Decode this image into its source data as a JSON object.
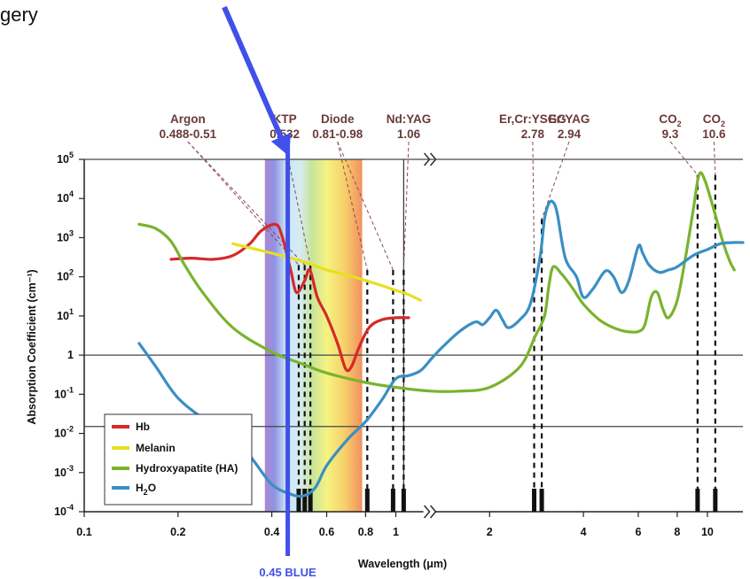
{
  "header": {
    "fragment_text": "gery"
  },
  "chart_data": {
    "type": "line",
    "x_scale": "log",
    "y_scale": "log",
    "xlabel": "Wavelength (μm)",
    "ylabel": "Absorption Coefficient (cm⁻¹)",
    "xlim": [
      0.1,
      13
    ],
    "ylim": [
      0.0001,
      100000
    ],
    "x_ticks": [
      {
        "value": 0.1,
        "label": "0.1"
      },
      {
        "value": 0.2,
        "label": "0.2"
      },
      {
        "value": 0.4,
        "label": "0.4"
      },
      {
        "value": 0.6,
        "label": "0.6"
      },
      {
        "value": 0.8,
        "label": "0.8"
      },
      {
        "value": 1,
        "label": "1"
      },
      {
        "value": 2,
        "label": "2"
      },
      {
        "value": 4,
        "label": "4"
      },
      {
        "value": 6,
        "label": "6"
      },
      {
        "value": 8,
        "label": "8"
      },
      {
        "value": 10,
        "label": "10"
      }
    ],
    "y_ticks": [
      {
        "value": 100000,
        "base": "10",
        "exp": "5"
      },
      {
        "value": 10000,
        "base": "10",
        "exp": "4"
      },
      {
        "value": 1000,
        "base": "10",
        "exp": "3"
      },
      {
        "value": 100,
        "base": "10",
        "exp": "2"
      },
      {
        "value": 10,
        "base": "10",
        "exp": "1"
      },
      {
        "value": 1,
        "base": "1",
        "exp": ""
      },
      {
        "value": 0.1,
        "base": "10",
        "exp": "-1"
      },
      {
        "value": 0.01,
        "base": "10",
        "exp": "-2"
      },
      {
        "value": 0.001,
        "base": "10",
        "exp": "-3"
      },
      {
        "value": 0.0001,
        "base": "10",
        "exp": "-4"
      }
    ],
    "reference_lines_y": [
      100000,
      1,
      0.015
    ],
    "axis_break_x": 1.25,
    "series": [
      {
        "name": "Hb",
        "color": "#d42a2a",
        "points": [
          [
            0.19,
            280
          ],
          [
            0.22,
            300
          ],
          [
            0.26,
            280
          ],
          [
            0.3,
            350
          ],
          [
            0.34,
            700
          ],
          [
            0.37,
            1500
          ],
          [
            0.41,
            2200
          ],
          [
            0.43,
            1200
          ],
          [
            0.46,
            150
          ],
          [
            0.48,
            40
          ],
          [
            0.51,
            80
          ],
          [
            0.53,
            150
          ],
          [
            0.56,
            30
          ],
          [
            0.6,
            10
          ],
          [
            0.65,
            2
          ],
          [
            0.69,
            0.45
          ],
          [
            0.72,
            0.5
          ],
          [
            0.76,
            1.5
          ],
          [
            0.82,
            5
          ],
          [
            0.9,
            8
          ],
          [
            1.0,
            9
          ],
          [
            1.1,
            9
          ]
        ]
      },
      {
        "name": "Melanin",
        "color": "#e6e020",
        "points": [
          [
            0.3,
            700
          ],
          [
            0.4,
            400
          ],
          [
            0.5,
            250
          ],
          [
            0.6,
            150
          ],
          [
            0.7,
            110
          ],
          [
            0.8,
            80
          ],
          [
            0.9,
            60
          ],
          [
            1.0,
            45
          ],
          [
            1.1,
            35
          ],
          [
            1.2,
            25
          ]
        ]
      },
      {
        "name": "Hydroxyapatite (HA)",
        "color": "#7ab32e",
        "points": [
          [
            0.15,
            2200
          ],
          [
            0.17,
            1700
          ],
          [
            0.19,
            800
          ],
          [
            0.21,
            200
          ],
          [
            0.24,
            40
          ],
          [
            0.3,
            5
          ],
          [
            0.4,
            1.2
          ],
          [
            0.5,
            0.6
          ],
          [
            0.6,
            0.35
          ],
          [
            0.8,
            0.2
          ],
          [
            1.0,
            0.15
          ],
          [
            1.3,
            0.12
          ],
          [
            1.6,
            0.12
          ],
          [
            2.0,
            0.15
          ],
          [
            2.5,
            0.5
          ],
          [
            2.8,
            3
          ],
          [
            3.0,
            10
          ],
          [
            3.1,
            60
          ],
          [
            3.2,
            180
          ],
          [
            3.4,
            120
          ],
          [
            3.7,
            50
          ],
          [
            4.0,
            20
          ],
          [
            4.5,
            8
          ],
          [
            5.0,
            5
          ],
          [
            5.5,
            4
          ],
          [
            6.0,
            4
          ],
          [
            6.3,
            6
          ],
          [
            6.6,
            30
          ],
          [
            6.9,
            40
          ],
          [
            7.2,
            15
          ],
          [
            7.5,
            9
          ],
          [
            8.0,
            25
          ],
          [
            8.5,
            300
          ],
          [
            9.0,
            5000
          ],
          [
            9.4,
            40000
          ],
          [
            9.8,
            30000
          ],
          [
            10.5,
            5000
          ],
          [
            11.2,
            800
          ],
          [
            11.8,
            250
          ],
          [
            12.2,
            150
          ]
        ]
      },
      {
        "name": "H₂O",
        "color": "#3a8fc4",
        "points": [
          [
            0.15,
            2
          ],
          [
            0.17,
            0.5
          ],
          [
            0.2,
            0.08
          ],
          [
            0.25,
            0.02
          ],
          [
            0.3,
            0.01
          ],
          [
            0.35,
            0.002
          ],
          [
            0.4,
            0.0005
          ],
          [
            0.45,
            0.0003
          ],
          [
            0.5,
            0.00025
          ],
          [
            0.55,
            0.0004
          ],
          [
            0.6,
            0.0015
          ],
          [
            0.7,
            0.007
          ],
          [
            0.8,
            0.02
          ],
          [
            0.9,
            0.07
          ],
          [
            1.0,
            0.25
          ],
          [
            1.1,
            0.3
          ],
          [
            1.2,
            0.4
          ],
          [
            1.3,
            0.8
          ],
          [
            1.4,
            1.5
          ],
          [
            1.6,
            4
          ],
          [
            1.8,
            7
          ],
          [
            1.9,
            6
          ],
          [
            2.0,
            9
          ],
          [
            2.1,
            14
          ],
          [
            2.2,
            8
          ],
          [
            2.3,
            5
          ],
          [
            2.5,
            8
          ],
          [
            2.7,
            20
          ],
          [
            2.9,
            300
          ],
          [
            3.0,
            3000
          ],
          [
            3.1,
            7500
          ],
          [
            3.2,
            8000
          ],
          [
            3.3,
            4000
          ],
          [
            3.5,
            300
          ],
          [
            3.8,
            100
          ],
          [
            4.0,
            30
          ],
          [
            4.3,
            50
          ],
          [
            4.7,
            140
          ],
          [
            5.0,
            100
          ],
          [
            5.3,
            40
          ],
          [
            5.6,
            80
          ],
          [
            6.0,
            600
          ],
          [
            6.2,
            400
          ],
          [
            6.5,
            200
          ],
          [
            7.0,
            130
          ],
          [
            7.5,
            150
          ],
          [
            8.0,
            180
          ],
          [
            9.0,
            350
          ],
          [
            10.0,
            500
          ],
          [
            11.0,
            700
          ],
          [
            12.0,
            750
          ],
          [
            13.0,
            750
          ]
        ]
      }
    ],
    "lasers": [
      {
        "name": "Argon",
        "value": "0.488-0.51",
        "label_x": 0.215,
        "lines": [
          0.488,
          0.51
        ]
      },
      {
        "name": "KTP",
        "value": "0.532",
        "label_x": 0.44,
        "lines": [
          0.532
        ]
      },
      {
        "name": "Diode",
        "value": "0.81-0.98",
        "label_x": 0.65,
        "lines": [
          0.81,
          0.98
        ]
      },
      {
        "name": "Nd:YAG",
        "value": "1.06",
        "label_x": 1.1,
        "lines": [
          1.06
        ]
      },
      {
        "name": "Er,Cr:YSGG",
        "value": "2.78",
        "label_x": 2.75,
        "lines": [
          2.78
        ]
      },
      {
        "name": "Er:YAG",
        "value": "2.94",
        "label_x": 3.6,
        "lines": [
          2.94
        ]
      },
      {
        "name": "CO",
        "name_sub": "2",
        "value": "9.3",
        "label_x": 7.6,
        "lines": [
          9.3
        ]
      },
      {
        "name": "CO",
        "name_sub": "2",
        "value": "10.6",
        "label_x": 10.5,
        "lines": [
          10.6
        ]
      }
    ],
    "spectrum_band": [
      0.38,
      0.78
    ],
    "highlight": {
      "label": "0.45 BLUE",
      "value": 0.45,
      "color": "#4050e8"
    }
  },
  "legend": {
    "items": [
      {
        "label": "Hb",
        "color": "#d42a2a"
      },
      {
        "label": "Melanin",
        "color": "#e6e020"
      },
      {
        "label": "Hydroxyapatite (HA)",
        "color": "#7ab32e"
      },
      {
        "label": "H",
        "sub": "2",
        "tail": "O",
        "color": "#3a8fc4"
      }
    ]
  },
  "colors": {
    "laser_label": "#6b3a3a",
    "grid_line": "#444444",
    "dashed_line": "#111111"
  }
}
